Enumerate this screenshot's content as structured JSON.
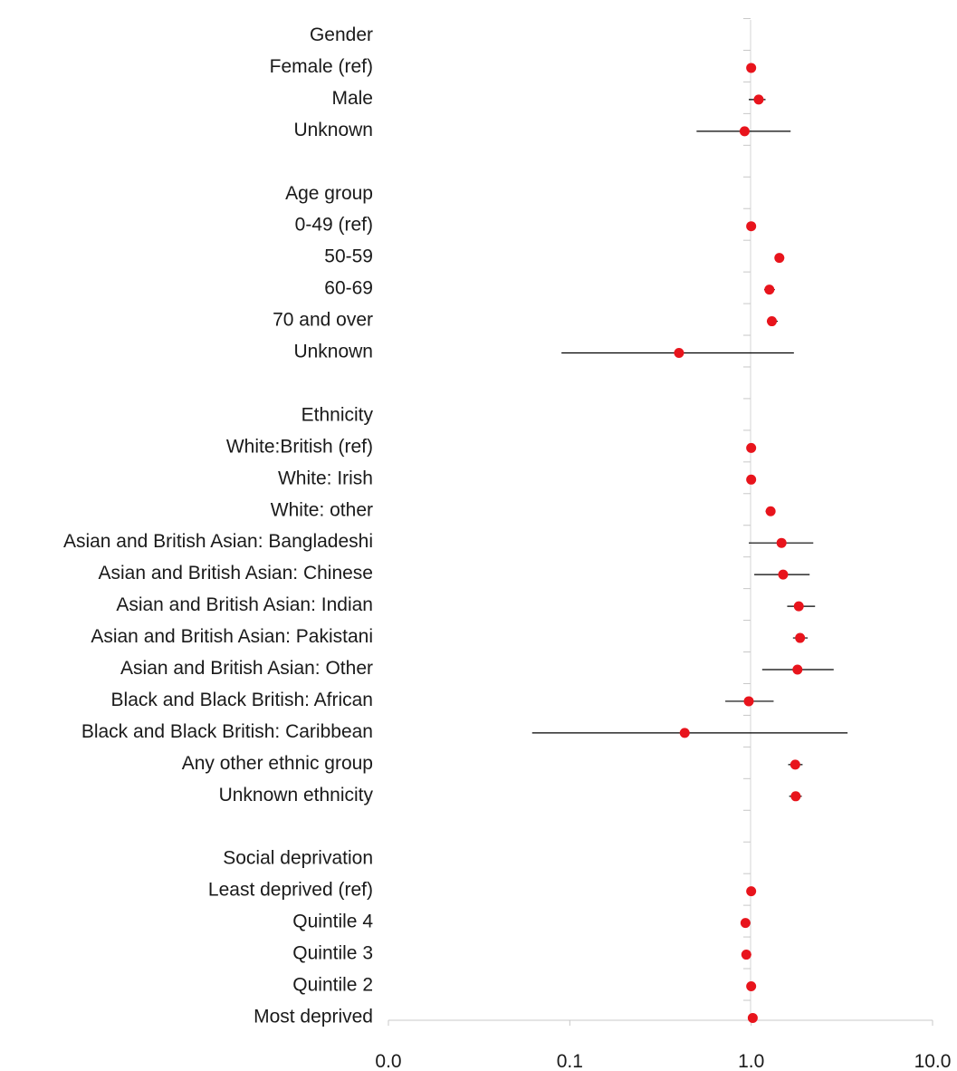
{
  "chart_data": {
    "type": "scatter",
    "subtype": "forest-plot",
    "title": "",
    "xlabel": "",
    "ylabel": "",
    "x_scale": "log",
    "xlim": [
      0.01,
      10.0
    ],
    "x_ticks": [
      {
        "value": 0.01,
        "label": "0.0"
      },
      {
        "value": 0.1,
        "label": "0.1"
      },
      {
        "value": 1.0,
        "label": "1.0"
      },
      {
        "value": 10.0,
        "label": "10.0"
      }
    ],
    "reference_line": 1.0,
    "grid": false,
    "legend": "none",
    "point_color": "#e8141c",
    "ci_color": "#000000",
    "rows": [
      {
        "label": "Gender",
        "header": true
      },
      {
        "label": "Female (ref)",
        "est": 1.0
      },
      {
        "label": "Male",
        "est": 1.1,
        "lo": 0.97,
        "hi": 1.2
      },
      {
        "label": "Unknown",
        "est": 0.92,
        "lo": 0.5,
        "hi": 1.65
      },
      {
        "label": "",
        "blank": true
      },
      {
        "label": "Age group",
        "header": true
      },
      {
        "label": "0-49 (ref)",
        "est": 1.0
      },
      {
        "label": "50-59",
        "est": 1.43,
        "lo": 1.35,
        "hi": 1.52
      },
      {
        "label": "60-69",
        "est": 1.26,
        "lo": 1.18,
        "hi": 1.35
      },
      {
        "label": "70 and over",
        "est": 1.3,
        "lo": 1.22,
        "hi": 1.4
      },
      {
        "label": "Unknown",
        "est": 0.4,
        "lo": 0.09,
        "hi": 1.72
      },
      {
        "label": "",
        "blank": true
      },
      {
        "label": "Ethnicity",
        "header": true
      },
      {
        "label": "White:British (ref)",
        "est": 1.0
      },
      {
        "label": "White: Irish",
        "est": 1.0,
        "lo": 0.95,
        "hi": 1.06
      },
      {
        "label": "White: other",
        "est": 1.28,
        "lo": 1.2,
        "hi": 1.36
      },
      {
        "label": "Asian and British Asian: Bangladeshi",
        "est": 1.47,
        "lo": 0.97,
        "hi": 2.2
      },
      {
        "label": "Asian and British Asian: Chinese",
        "est": 1.5,
        "lo": 1.04,
        "hi": 2.1
      },
      {
        "label": "Asian and British Asian: Indian",
        "est": 1.83,
        "lo": 1.58,
        "hi": 2.25
      },
      {
        "label": "Asian and British Asian: Pakistani",
        "est": 1.86,
        "lo": 1.7,
        "hi": 2.05
      },
      {
        "label": "Asian and British Asian: Other",
        "est": 1.8,
        "lo": 1.15,
        "hi": 2.85
      },
      {
        "label": "Black and Black British: African",
        "est": 0.97,
        "lo": 0.72,
        "hi": 1.33
      },
      {
        "label": "Black and Black British: Caribbean",
        "est": 0.43,
        "lo": 0.062,
        "hi": 3.4
      },
      {
        "label": "Any other ethnic group",
        "est": 1.75,
        "lo": 1.6,
        "hi": 1.92
      },
      {
        "label": "Unknown ethnicity",
        "est": 1.76,
        "lo": 1.62,
        "hi": 1.9
      },
      {
        "label": "",
        "blank": true
      },
      {
        "label": "Social deprivation",
        "header": true
      },
      {
        "label": "Least  deprived (ref)",
        "est": 1.0
      },
      {
        "label": "Quintile 4",
        "est": 0.93,
        "lo": 0.88,
        "hi": 0.99
      },
      {
        "label": "Quintile 3",
        "est": 0.94,
        "lo": 0.89,
        "hi": 1.0
      },
      {
        "label": "Quintile 2",
        "est": 1.0,
        "lo": 0.95,
        "hi": 1.06
      },
      {
        "label": "Most deprived",
        "est": 1.02,
        "lo": 0.97,
        "hi": 1.08
      }
    ]
  }
}
